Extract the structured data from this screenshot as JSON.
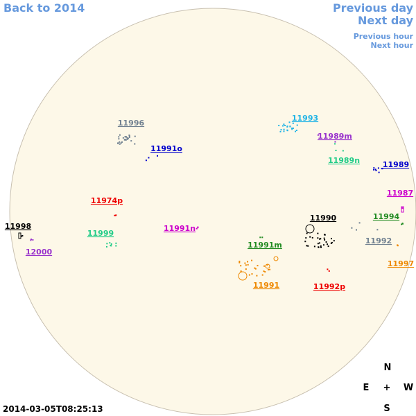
{
  "navigation": {
    "back": "Back to 2014",
    "previous_day": "Previous day",
    "next_day": "Next day",
    "previous_hour": "Previous hour",
    "next_hour": "Next hour"
  },
  "regions": [
    {
      "label": "11996",
      "color": "#708090"
    },
    {
      "label": "11991o",
      "color": "#0000cc"
    },
    {
      "label": "11993",
      "color": "#22b4e6"
    },
    {
      "label": "11989m",
      "color": "#9933cc"
    },
    {
      "label": "11989n",
      "color": "#22cc88"
    },
    {
      "label": "11989",
      "color": "#0000cc"
    },
    {
      "label": "11987",
      "color": "#cc00cc"
    },
    {
      "label": "11994",
      "color": "#228b22"
    },
    {
      "label": "11990",
      "color": "#000000"
    },
    {
      "label": "11992",
      "color": "#708090"
    },
    {
      "label": "11997",
      "color": "#ee8800"
    },
    {
      "label": "11974p",
      "color": "#ee0000"
    },
    {
      "label": "11999",
      "color": "#22cc88"
    },
    {
      "label": "11991n",
      "color": "#cc00cc"
    },
    {
      "label": "11998",
      "color": "#000000"
    },
    {
      "label": "12000",
      "color": "#9933cc"
    },
    {
      "label": "11991m",
      "color": "#228b22"
    },
    {
      "label": "11991",
      "color": "#ee8800"
    },
    {
      "label": "11992p",
      "color": "#ee0000"
    }
  ],
  "timestamp": "2014-03-05T08:25:13",
  "compass": {
    "north": "N",
    "east": "E",
    "center": "+",
    "west": "W",
    "south": "S"
  }
}
